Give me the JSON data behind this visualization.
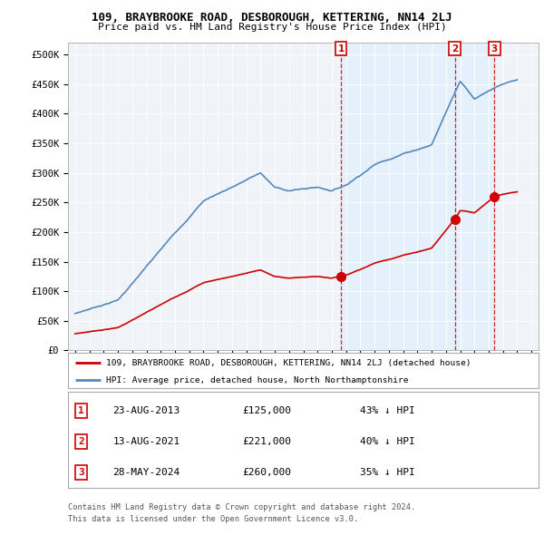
{
  "title": "109, BRAYBROOKE ROAD, DESBOROUGH, KETTERING, NN14 2LJ",
  "subtitle": "Price paid vs. HM Land Registry's House Price Index (HPI)",
  "background_color": "#ffffff",
  "hpi_color": "#5588bb",
  "sale_color": "#cc0000",
  "hpi_fill_color": "#ddeeff",
  "sale_points": [
    {
      "date_num": 2013.64,
      "price": 125000,
      "label": "1"
    },
    {
      "date_num": 2021.62,
      "price": 221000,
      "label": "2"
    },
    {
      "date_num": 2024.41,
      "price": 260000,
      "label": "3"
    }
  ],
  "vline_dates": [
    2013.64,
    2021.62,
    2024.41
  ],
  "yticks": [
    0,
    50000,
    100000,
    150000,
    200000,
    250000,
    300000,
    350000,
    400000,
    450000,
    500000
  ],
  "ytick_labels": [
    "£0",
    "£50K",
    "£100K",
    "£150K",
    "£200K",
    "£250K",
    "£300K",
    "£350K",
    "£400K",
    "£450K",
    "£500K"
  ],
  "xlim": [
    1994.5,
    2027.5
  ],
  "ylim": [
    0,
    520000
  ],
  "legend_sale_label": "109, BRAYBROOKE ROAD, DESBOROUGH, KETTERING, NN14 2LJ (detached house)",
  "legend_hpi_label": "HPI: Average price, detached house, North Northamptonshire",
  "footer_line1": "Contains HM Land Registry data © Crown copyright and database right 2024.",
  "footer_line2": "This data is licensed under the Open Government Licence v3.0.",
  "table_rows": [
    {
      "label": "1",
      "date": "23-AUG-2013",
      "price": "£125,000",
      "pct": "43% ↓ HPI"
    },
    {
      "label": "2",
      "date": "13-AUG-2021",
      "price": "£221,000",
      "pct": "40% ↓ HPI"
    },
    {
      "label": "3",
      "date": "28-MAY-2024",
      "price": "£260,000",
      "pct": "35% ↓ HPI"
    }
  ]
}
